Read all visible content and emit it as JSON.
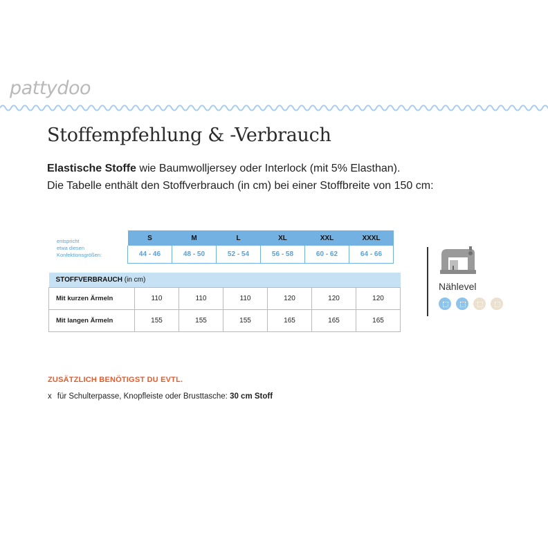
{
  "brand": "pattydoo",
  "title": "Stoffempfehlung & -Verbrauch",
  "intro": {
    "bold": "Elastische Stoffe",
    "rest": " wie Baumwolljersey oder Interlock (mit 5% Elasthan).",
    "line2": "Die Tabelle enthält den Stoffverbrauch (in cm) bei einer Stoffbreite von 150 cm:"
  },
  "sizes": {
    "label_line1": "entspricht",
    "label_line2": "etwa diesen",
    "label_line3": "Konfektionsgrößen:",
    "names": [
      "S",
      "M",
      "L",
      "XL",
      "XXL",
      "XXXL"
    ],
    "konfektion": [
      "44 - 46",
      "48 - 50",
      "52 - 54",
      "56 - 58",
      "60 - 62",
      "64 - 66"
    ]
  },
  "usage": {
    "section_bold": "STOFFVERBRAUCH",
    "section_unit": " (in cm)",
    "rows": [
      {
        "label": "Mit kurzen Ärmeln",
        "values": [
          "110",
          "110",
          "110",
          "120",
          "120",
          "120"
        ]
      },
      {
        "label": "Mit langen Ärmeln",
        "values": [
          "155",
          "155",
          "155",
          "165",
          "165",
          "165"
        ]
      }
    ]
  },
  "level": {
    "label": "Nählevel",
    "value": 2,
    "max": 4,
    "icon": "sewing-machine-icon",
    "on_color": "#8ec4ec",
    "off_color": "#ece1cf"
  },
  "extra": {
    "heading": "ZUSÄTZLICH BENÖTIGST DU EVTL.",
    "marker": "x",
    "text": "für Schulterpasse, Knopfleiste oder Brusttasche: ",
    "amount": "30 cm Stoff"
  },
  "colors": {
    "accent_blue": "#74b1e3",
    "light_blue": "#c7e1f4",
    "orange": "#ea5a28"
  }
}
